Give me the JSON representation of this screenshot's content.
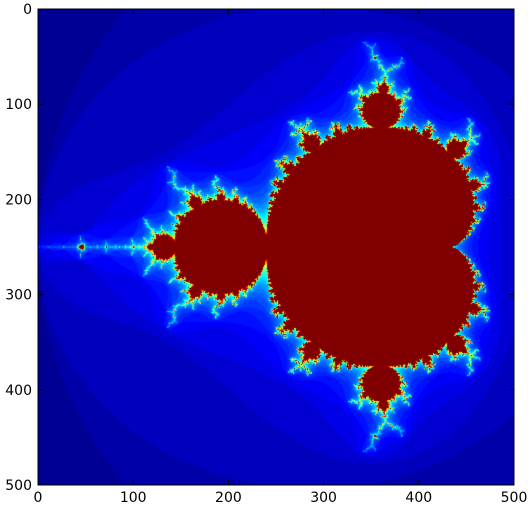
{
  "chart_data": {
    "type": "heatmap",
    "title": "",
    "xlabel": "",
    "ylabel": "",
    "colormap": "jet",
    "grid": false,
    "legend": "none",
    "xlim": [
      0,
      500
    ],
    "ylim": [
      500,
      0
    ],
    "x_ticks": [
      {
        "value": 0,
        "label": "0"
      },
      {
        "value": 100,
        "label": "100"
      },
      {
        "value": 200,
        "label": "200"
      },
      {
        "value": 300,
        "label": "300"
      },
      {
        "value": 400,
        "label": "400"
      },
      {
        "value": 500,
        "label": "500"
      }
    ],
    "y_ticks": [
      {
        "value": 0,
        "label": "0"
      },
      {
        "value": 100,
        "label": "100"
      },
      {
        "value": 200,
        "label": "200"
      },
      {
        "value": 300,
        "label": "300"
      },
      {
        "value": 400,
        "label": "400"
      },
      {
        "value": 500,
        "label": "500"
      }
    ],
    "image": {
      "subject": "Mandelbrot set escape-iteration map",
      "complex_region": {
        "re": [
          -2.0,
          0.6
        ],
        "im": [
          -1.3,
          1.3
        ]
      },
      "max_iterations": 50
    }
  }
}
